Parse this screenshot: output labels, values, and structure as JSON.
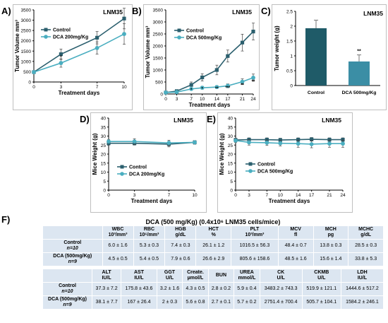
{
  "panels": [
    {
      "id": "A",
      "letter": "A)",
      "title": "LNM35",
      "ylabel": "Tumor Volume mm³",
      "xlabel": "Treatment days",
      "yticks": [
        0,
        500,
        1000,
        1500,
        2000,
        2500,
        3000,
        3500
      ],
      "ylim": [
        0,
        3500
      ],
      "xticks": [
        0,
        3,
        7,
        10
      ],
      "xlim": [
        0,
        10
      ],
      "legend": [
        "Control",
        "DCA 200mg/Kg"
      ],
      "series": [
        {
          "name": "Control",
          "color": "#2b5f6e",
          "marker": "square",
          "x": [
            0,
            3,
            7,
            10
          ],
          "y": [
            480,
            1350,
            2150,
            3080
          ],
          "err": [
            60,
            250,
            300,
            500
          ]
        },
        {
          "name": "DCA 200mg/Kg",
          "color": "#4aaec0",
          "marker": "circle",
          "x": [
            0,
            3,
            7,
            10
          ],
          "y": [
            480,
            920,
            1650,
            2330
          ],
          "err": [
            60,
            200,
            300,
            500
          ]
        }
      ],
      "annotations": [
        {
          "x": 3,
          "y": 1150,
          "text": "*"
        }
      ]
    },
    {
      "id": "B",
      "letter": "B)",
      "title": "LNM35",
      "ylabel": "Tumor Volume mm³",
      "xlabel": "Treatment days",
      "yticks": [
        0,
        500,
        1000,
        1500,
        2000,
        2500,
        3000,
        3500
      ],
      "ylim": [
        0,
        3500
      ],
      "xticks": [
        0,
        3,
        7,
        10,
        14,
        17,
        21,
        24
      ],
      "xlim": [
        0,
        24
      ],
      "legend": [
        "Control",
        "DCA 500mg/Kg"
      ],
      "series": [
        {
          "name": "Control",
          "color": "#2b5f6e",
          "marker": "square",
          "x": [
            0,
            3,
            7,
            10,
            14,
            17,
            21,
            24
          ],
          "y": [
            60,
            120,
            380,
            690,
            1000,
            1580,
            2140,
            2600
          ],
          "err": [
            20,
            60,
            120,
            150,
            200,
            250,
            350,
            350
          ]
        },
        {
          "name": "DCA 500mg/Kg",
          "color": "#4aaec0",
          "marker": "circle",
          "x": [
            0,
            3,
            7,
            10,
            14,
            17,
            21,
            24
          ],
          "y": [
            60,
            80,
            210,
            260,
            290,
            340,
            510,
            680
          ],
          "err": [
            20,
            30,
            50,
            60,
            60,
            80,
            120,
            150
          ]
        }
      ],
      "annotations": [
        {
          "x": 7,
          "y": 120,
          "text": "*"
        },
        {
          "x": 10,
          "y": 160,
          "text": "*"
        },
        {
          "x": 14,
          "y": 180,
          "text": "**"
        },
        {
          "x": 17,
          "y": 210,
          "text": "***"
        },
        {
          "x": 21,
          "y": 330,
          "text": "**"
        },
        {
          "x": 24,
          "y": 470,
          "text": "**"
        }
      ]
    },
    {
      "id": "D",
      "letter": "D)",
      "title": "LNM35",
      "ylabel": "Mice Weight (g)",
      "xlabel": "Treatment days",
      "yticks": [
        0,
        5,
        10,
        15,
        20,
        25,
        30,
        35,
        40
      ],
      "ylim": [
        0,
        40
      ],
      "xticks": [
        0,
        3,
        7,
        10
      ],
      "xlim": [
        0,
        10
      ],
      "legend": [
        "Control",
        "DCA 200mg/Kg"
      ],
      "series": [
        {
          "name": "Control",
          "color": "#2b5f6e",
          "marker": "square",
          "x": [
            0,
            3,
            7,
            10
          ],
          "y": [
            26,
            26,
            25.5,
            26.5
          ],
          "err": [
            1,
            1,
            1.5,
            1
          ]
        },
        {
          "name": "DCA 200mg/Kg",
          "color": "#4aaec0",
          "marker": "circle",
          "x": [
            0,
            3,
            7,
            10
          ],
          "y": [
            27,
            27,
            26.2,
            26.5
          ],
          "err": [
            1,
            1.5,
            1.5,
            1
          ]
        }
      ],
      "annotations": []
    },
    {
      "id": "E",
      "letter": "E)",
      "title": "LNM35",
      "ylabel": "Mice Weight (g)",
      "xlabel": "Treatment days",
      "yticks": [
        0,
        5,
        10,
        15,
        20,
        25,
        30,
        35,
        40
      ],
      "ylim": [
        0,
        40
      ],
      "xticks": [
        0,
        3,
        7,
        10,
        14,
        17,
        21,
        24
      ],
      "xlim": [
        0,
        24
      ],
      "legend": [
        "Control",
        "DCA 500mg/Kg"
      ],
      "series": [
        {
          "name": "Control",
          "color": "#2b5f6e",
          "marker": "square",
          "x": [
            0,
            3,
            7,
            10,
            14,
            17,
            21,
            24
          ],
          "y": [
            27.8,
            28,
            28,
            27.8,
            28,
            28.2,
            28,
            28
          ],
          "err": [
            1,
            1,
            1,
            1,
            1,
            1,
            1,
            1
          ]
        },
        {
          "name": "DCA 500mg/Kg",
          "color": "#4aaec0",
          "marker": "circle",
          "x": [
            0,
            3,
            7,
            10,
            14,
            17,
            21,
            24
          ],
          "y": [
            27.5,
            26.5,
            26.3,
            26,
            25.8,
            25.5,
            25.8,
            25.8
          ],
          "err": [
            1,
            1.5,
            1.5,
            1.5,
            2,
            2,
            2,
            2
          ]
        }
      ],
      "annotations": []
    }
  ],
  "chart_data": [
    {
      "type": "line",
      "panel": "A",
      "title": "LNM35",
      "xlabel": "Treatment days",
      "ylabel": "Tumor Volume mm³",
      "x": [
        0,
        3,
        7,
        10
      ],
      "ylim": [
        0,
        3500
      ],
      "series": [
        {
          "name": "Control",
          "values": [
            480,
            1350,
            2150,
            3080
          ]
        },
        {
          "name": "DCA 200mg/Kg",
          "values": [
            480,
            920,
            1650,
            2330
          ]
        }
      ]
    },
    {
      "type": "line",
      "panel": "B",
      "title": "LNM35",
      "xlabel": "Treatment days",
      "ylabel": "Tumor Volume mm³",
      "x": [
        0,
        3,
        7,
        10,
        14,
        17,
        21,
        24
      ],
      "ylim": [
        0,
        3500
      ],
      "series": [
        {
          "name": "Control",
          "values": [
            60,
            120,
            380,
            690,
            1000,
            1580,
            2140,
            2600
          ]
        },
        {
          "name": "DCA 500mg/Kg",
          "values": [
            60,
            80,
            210,
            260,
            290,
            340,
            510,
            680
          ]
        }
      ]
    },
    {
      "type": "bar",
      "panel": "C",
      "title": "LNM35",
      "ylabel": "Tumor weight (g)",
      "categories": [
        "Control",
        "DCA 500mg/Kg"
      ],
      "values": [
        1.93,
        0.81
      ],
      "ylim": [
        0,
        2.5
      ]
    },
    {
      "type": "line",
      "panel": "D",
      "title": "LNM35",
      "xlabel": "Treatment days",
      "ylabel": "Mice Weight (g)",
      "x": [
        0,
        3,
        7,
        10
      ],
      "ylim": [
        0,
        40
      ],
      "series": [
        {
          "name": "Control",
          "values": [
            26,
            26,
            25.5,
            26.5
          ]
        },
        {
          "name": "DCA 200mg/Kg",
          "values": [
            27,
            27,
            26.2,
            26.5
          ]
        }
      ]
    },
    {
      "type": "line",
      "panel": "E",
      "title": "LNM35",
      "xlabel": "Treatment days",
      "ylabel": "Mice Weight (g)",
      "x": [
        0,
        3,
        7,
        10,
        14,
        17,
        21,
        24
      ],
      "ylim": [
        0,
        40
      ],
      "series": [
        {
          "name": "Control",
          "values": [
            27.8,
            28,
            28,
            27.8,
            28,
            28.2,
            28,
            28
          ]
        },
        {
          "name": "DCA 500mg/Kg",
          "values": [
            27.5,
            26.5,
            26.3,
            26,
            25.8,
            25.5,
            25.8,
            25.8
          ]
        }
      ]
    },
    {
      "type": "table",
      "panel": "F",
      "title": "DCA (500 mg/Kg) (0.4x10⁶ LNM35 cells/mice)"
    }
  ],
  "bar_panel": {
    "letter": "C)",
    "title": "LNM35",
    "ylabel": "Tumor weight (g)",
    "yticks": [
      0,
      0.5,
      1,
      1.5,
      2,
      2.5
    ],
    "ylim": [
      0,
      2.5
    ],
    "categories": [
      "Control",
      "DCA 500mg/Kg"
    ],
    "values": [
      1.93,
      0.81
    ],
    "err": [
      0.27,
      0.22
    ],
    "colors": [
      "#1f5b68",
      "#3b8ea5"
    ],
    "annotation": "**"
  },
  "table": {
    "letter": "F)",
    "title": "DCA (500 mg/Kg) (0.4x10⁶ LNM35 cells/mice)",
    "block1": {
      "headers": [
        {
          "name": "WBC",
          "unit": "10³/mm³"
        },
        {
          "name": "RBC",
          "unit": "10⁶/mm³"
        },
        {
          "name": "HGB",
          "unit": "g/dL"
        },
        {
          "name": "HCT",
          "unit": "%"
        },
        {
          "name": "PLT",
          "unit": "10³/mm³"
        },
        {
          "name": "MCV",
          "unit": "fl"
        },
        {
          "name": "MCH",
          "unit": "pg"
        },
        {
          "name": "MCHC",
          "unit": "g/dL"
        }
      ],
      "rows": [
        {
          "label": "Control",
          "n": "n=10",
          "values": [
            "6.0 ± 1.6",
            "5.3 ± 0.3",
            "7.4 ± 0.3",
            "26.1 ± 1.2",
            "1016.5 ± 56.3",
            "48.4 ± 0.7",
            "13.8 ± 0.3",
            "28.5 ± 0.3"
          ]
        },
        {
          "label": "DCA (500mg/Kg)",
          "n": "n=9",
          "values": [
            "4.5 ± 0.5",
            "5.4 ± 0.5",
            "7.9 ± 0.6",
            "26.6 ± 2.9",
            "805.6 ± 158.6",
            "48.5 ± 1.6",
            "15.6 ± 1.4",
            "33.8 ± 5.3"
          ]
        }
      ]
    },
    "block2": {
      "headers": [
        {
          "name": "ALT",
          "unit": "IU/L"
        },
        {
          "name": "AST",
          "unit": "IU/L"
        },
        {
          "name": "GGT",
          "unit": "U/L"
        },
        {
          "name": "Create.",
          "unit": "µmol/L"
        },
        {
          "name": "BUN",
          "unit": ""
        },
        {
          "name": "UREA",
          "unit": "mmol/L"
        },
        {
          "name": "CK",
          "unit": "U/L"
        },
        {
          "name": "CKMB",
          "unit": "U/L"
        },
        {
          "name": "LDH",
          "unit": "IU/L"
        }
      ],
      "rows": [
        {
          "label": "Control",
          "n": "n=10",
          "values": [
            "37.3 ± 7.2",
            "175.8 ± 43.6",
            "3.2 ± 1.6",
            "4.3 ± 0.5",
            "2.8 ± 0.2",
            "5.9 ± 0.4",
            "3483.2 ± 743.3",
            "519.9 ± 121.1",
            "1444.6 ± 517.2"
          ]
        },
        {
          "label": "DCA (500mg/Kg)",
          "n": "n=9",
          "values": [
            "38.1 ± 7.7",
            "167 ± 26.4",
            "2 ± 0.3",
            "5.6 ± 0.8",
            "2.7 ± 0.1",
            "5.7 ± 0.2",
            "2751.4 ± 700.4",
            "505.7 ± 104.1",
            "1584.2 ± 246.1"
          ]
        }
      ]
    }
  }
}
